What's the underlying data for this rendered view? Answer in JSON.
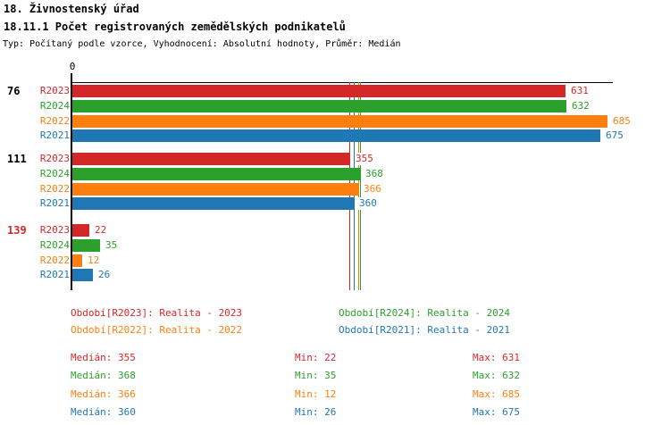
{
  "header": {
    "section_title": "18. Živnostenský úřad",
    "report_title": "18.11.1 Počet registrovaných zemědělských podnikatelů",
    "meta": "Typ: Počítaný podle vzorce, Vyhodnocení: Absolutní hodnoty, Průměr: Medián"
  },
  "chart_data": {
    "type": "bar",
    "orientation": "horizontal",
    "title": "18.11.1 Počet registrovaných zemědělských podnikatelů",
    "x_axis": {
      "zero_label": "0",
      "min": 0,
      "implied_max": 691
    },
    "grid": false,
    "series_order": [
      "R2023",
      "R2024",
      "R2022",
      "R2021"
    ],
    "series_colors": {
      "R2023": "#d62728",
      "R2024": "#2ca02c",
      "R2022": "#ff7f0e",
      "R2021": "#1f77b4"
    },
    "groups": [
      {
        "label": "76",
        "label_color": "#000000",
        "values": {
          "R2023": 631,
          "R2024": 632,
          "R2022": 685,
          "R2021": 675
        }
      },
      {
        "label": "111",
        "label_color": "#000000",
        "values": {
          "R2023": 355,
          "R2024": 368,
          "R2022": 366,
          "R2021": 360
        }
      },
      {
        "label": "139",
        "label_color": "#d62728",
        "values": {
          "R2023": 22,
          "R2024": 35,
          "R2022": 12,
          "R2021": 26
        }
      }
    ],
    "medians": {
      "R2023": 355,
      "R2024": 368,
      "R2022": 366,
      "R2021": 360
    },
    "stat_labels": {
      "median": "Medián",
      "min": "Min",
      "max": "Max"
    },
    "stats": [
      {
        "series": "R2023",
        "median": 355,
        "min": 22,
        "max": 631
      },
      {
        "series": "R2024",
        "median": 368,
        "min": 35,
        "max": 632
      },
      {
        "series": "R2022",
        "median": 366,
        "min": 12,
        "max": 685
      },
      {
        "series": "R2021",
        "median": 360,
        "min": 26,
        "max": 675
      }
    ]
  },
  "legend": [
    {
      "series": "R2023",
      "label": "Období[R2023]: Realita - 2023"
    },
    {
      "series": "R2024",
      "label": "Období[R2024]: Realita - 2024"
    },
    {
      "series": "R2022",
      "label": "Období[R2022]: Realita - 2022"
    },
    {
      "series": "R2021",
      "label": "Období[R2021]: Realita - 2021"
    }
  ]
}
